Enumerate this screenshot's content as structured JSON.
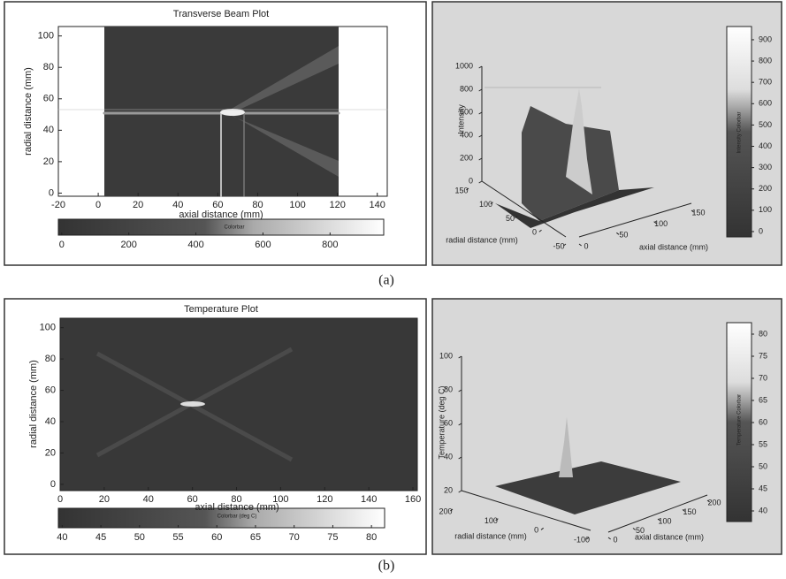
{
  "figure_labels": [
    "(a)",
    "(b)"
  ],
  "chart_data": [
    {
      "type": "heatmap",
      "title": "Transverse Beam Plot",
      "x_label": "axial distance (mm)",
      "y_label": "radial distance (mm)",
      "xlim": [
        -20,
        145
      ],
      "xticks": [
        -20,
        0,
        20,
        40,
        60,
        80,
        100,
        120,
        140
      ],
      "ylim": [
        -2,
        106
      ],
      "yticks": [
        0,
        20,
        40,
        60,
        80,
        100
      ],
      "colorbar": {
        "label": "Colorbar",
        "lim": [
          -10,
          960
        ],
        "ticks": [
          0,
          200,
          400,
          600,
          800
        ],
        "orientation": "horizontal"
      }
    },
    {
      "type": "surface",
      "z_label": "Intensity",
      "x_label": "axial distance (mm)",
      "y_label": "radial distance (mm)",
      "zlim": [
        0,
        1000
      ],
      "zticks": [
        0,
        200,
        400,
        600,
        800,
        1000
      ],
      "xlim": [
        0,
        150
      ],
      "xticks": [
        0,
        50,
        100,
        150
      ],
      "ylim": [
        -50,
        150
      ],
      "yticks": [
        150,
        100,
        50,
        0,
        -50
      ],
      "colorbar": {
        "label": "Intensity Colorbar",
        "lim": [
          -25,
          962
        ],
        "ticks": [
          0,
          100,
          200,
          300,
          400,
          500,
          600,
          700,
          800,
          900
        ],
        "orientation": "vertical"
      }
    },
    {
      "type": "heatmap",
      "title": "Temperature Plot",
      "x_label": "axial distance (mm)",
      "y_label": "radial distance (mm)",
      "xlim": [
        0,
        162
      ],
      "xticks": [
        0,
        20,
        40,
        60,
        80,
        100,
        120,
        140,
        160
      ],
      "ylim": [
        -4,
        106
      ],
      "yticks": [
        0,
        20,
        40,
        60,
        80,
        100
      ],
      "colorbar": {
        "label": "Colorbar (deg C)",
        "lim": [
          39.5,
          81.7
        ],
        "ticks": [
          40,
          45,
          50,
          55,
          60,
          65,
          70,
          75,
          80
        ],
        "orientation": "horizontal"
      }
    },
    {
      "type": "surface",
      "z_label": "Temperature (deg C)",
      "x_label": "axial distance (mm)",
      "y_label": "radial distance (mm)",
      "zlim": [
        20,
        100
      ],
      "zticks": [
        20,
        40,
        60,
        80,
        100
      ],
      "xlim": [
        0,
        200
      ],
      "xticks": [
        0,
        50,
        100,
        150,
        200
      ],
      "ylim": [
        -100,
        200
      ],
      "yticks": [
        200,
        100,
        0,
        -100
      ],
      "colorbar": {
        "label": "Temperature Colorbar",
        "lim": [
          37.6,
          82.6
        ],
        "ticks": [
          40,
          45,
          50,
          55,
          60,
          65,
          70,
          75,
          80
        ],
        "orientation": "vertical"
      }
    }
  ]
}
